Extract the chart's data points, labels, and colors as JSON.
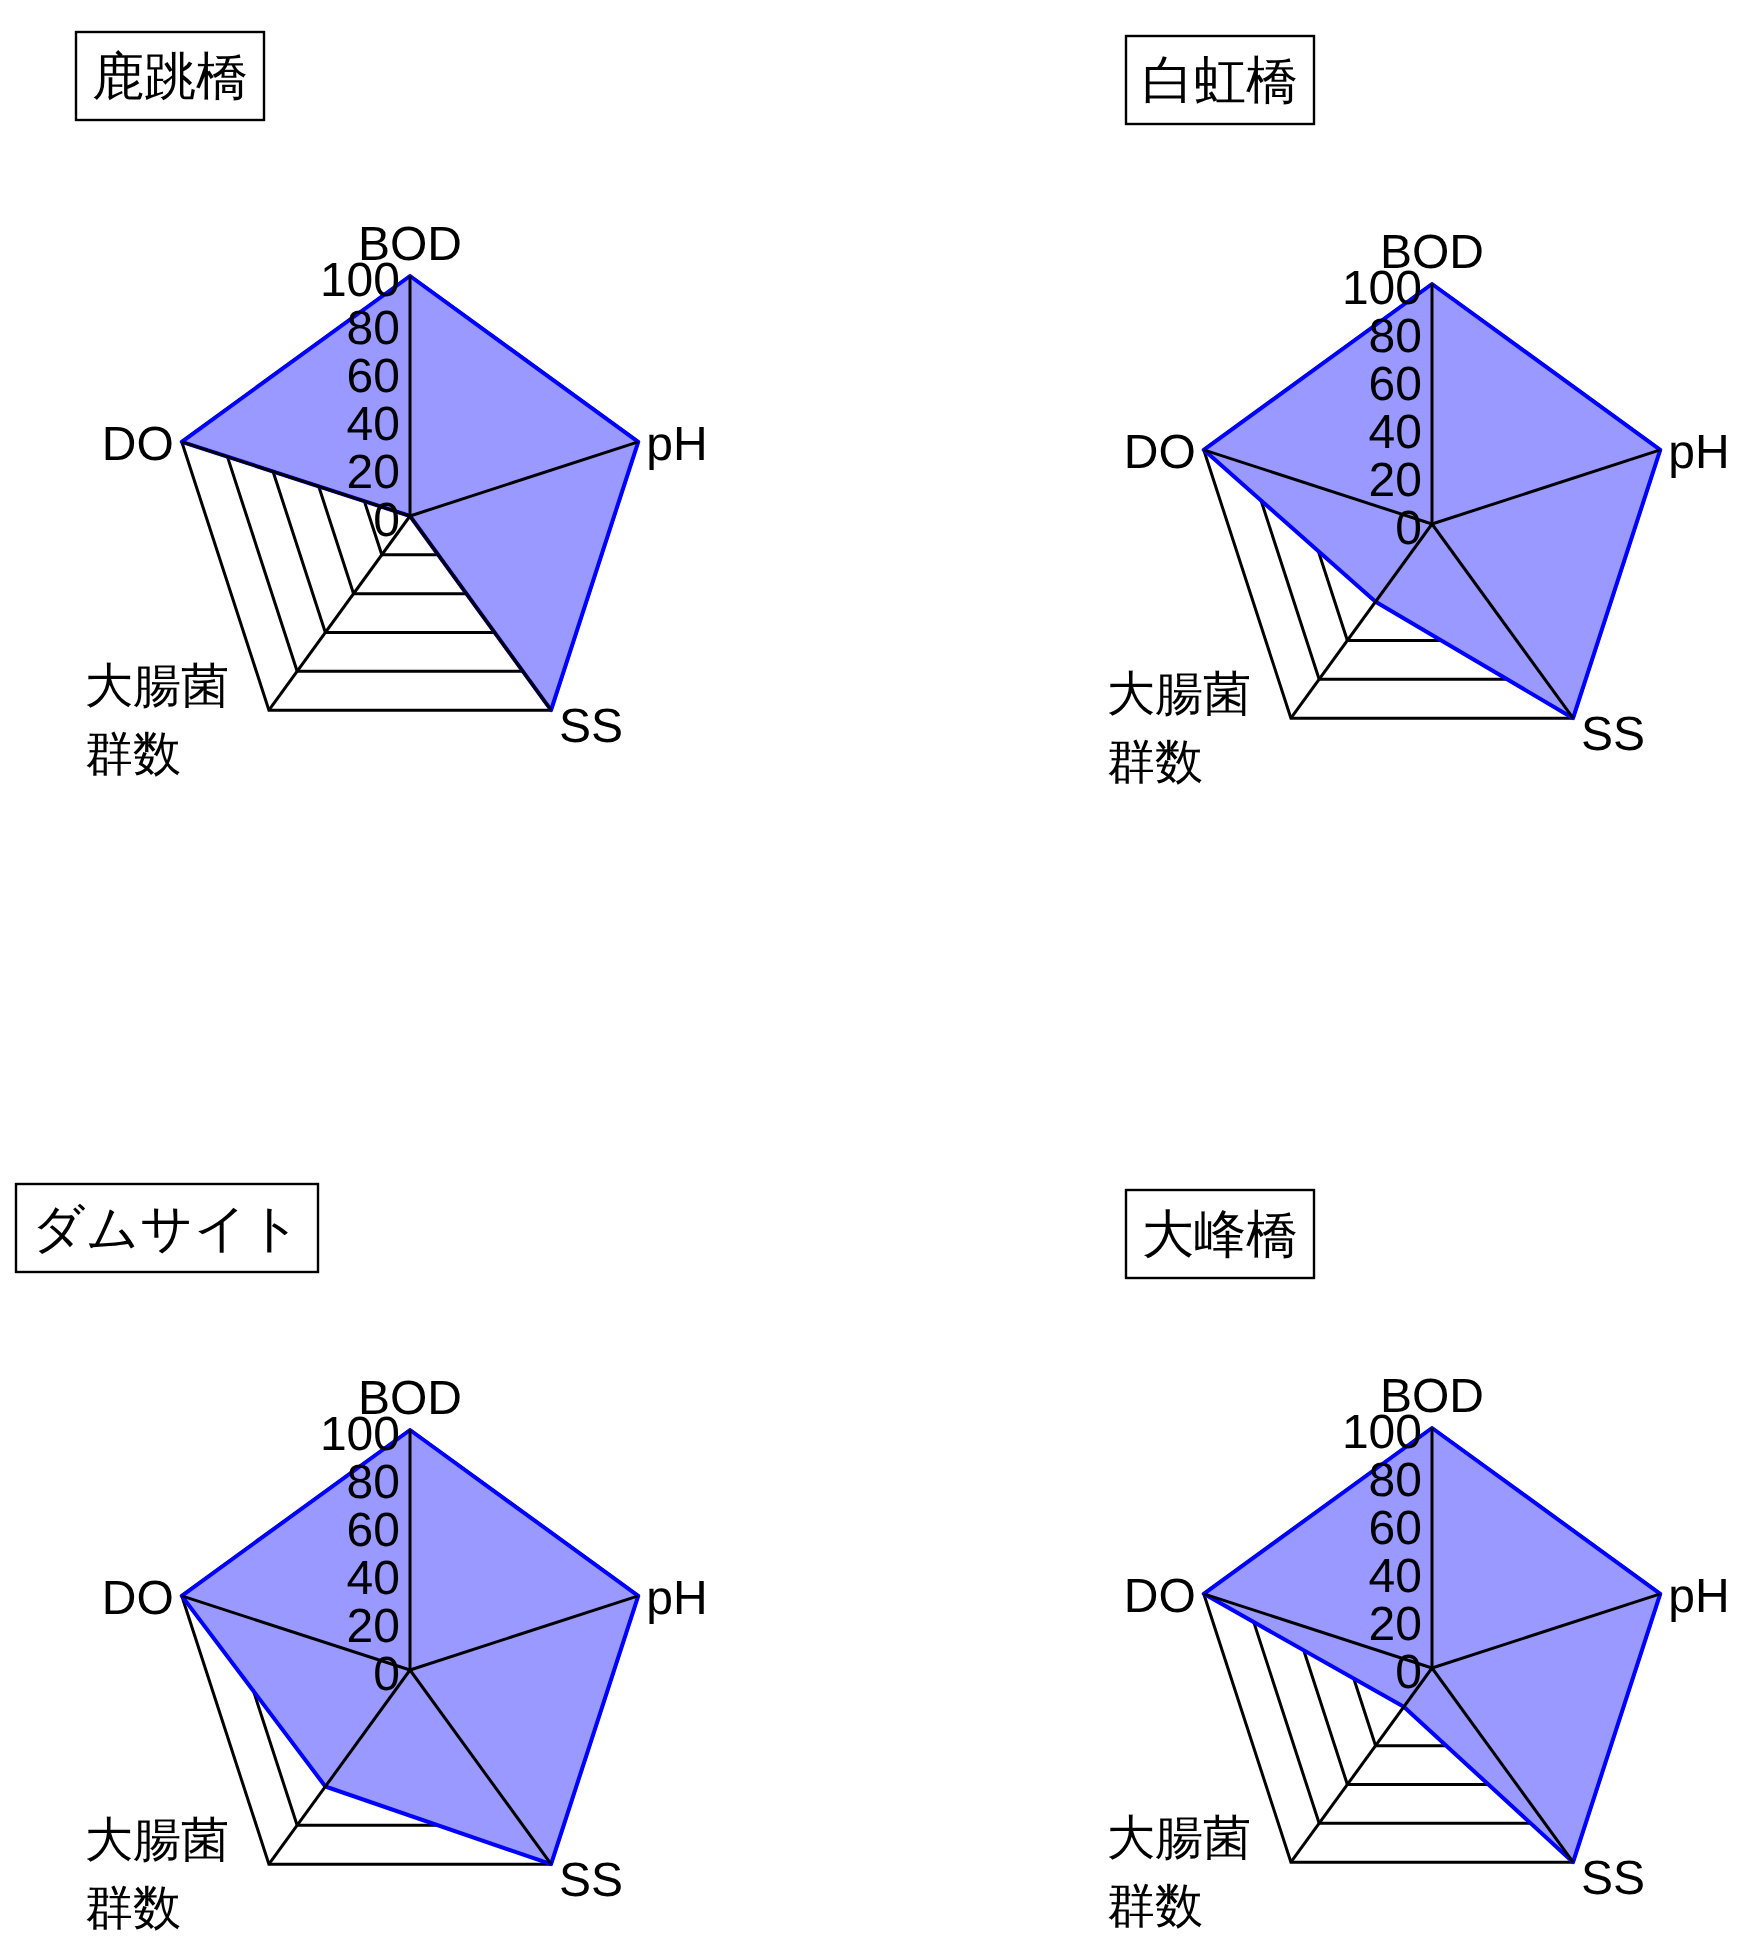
{
  "chart_data": [
    {
      "type": "radar",
      "title": "鹿跳橋",
      "categories": [
        "BOD",
        "pH",
        "SS",
        "大腸菌群数",
        "DO"
      ],
      "ylim": [
        0,
        100
      ],
      "yticks": [
        0,
        20,
        40,
        60,
        80,
        100
      ],
      "series": [
        {
          "color": "#0000ff",
          "values": [
            100,
            100,
            100,
            0,
            100
          ]
        }
      ]
    },
    {
      "type": "radar",
      "title": "白虹橋",
      "categories": [
        "BOD",
        "pH",
        "SS",
        "大腸菌群数",
        "DO"
      ],
      "ylim": [
        0,
        100
      ],
      "yticks": [
        0,
        20,
        40,
        60,
        80,
        100
      ],
      "series": [
        {
          "color": "#0000ff",
          "values": [
            100,
            100,
            100,
            40,
            100
          ]
        }
      ]
    },
    {
      "type": "radar",
      "title": "ダムサイト",
      "categories": [
        "BOD",
        "pH",
        "SS",
        "大腸菌群数",
        "DO"
      ],
      "ylim": [
        0,
        100
      ],
      "yticks": [
        0,
        20,
        40,
        60,
        80,
        100
      ],
      "series": [
        {
          "color": "#0000ff",
          "values": [
            100,
            100,
            100,
            60,
            100
          ]
        }
      ]
    },
    {
      "type": "radar",
      "title": "大峰橋",
      "categories": [
        "BOD",
        "pH",
        "SS",
        "大腸菌群数",
        "DO"
      ],
      "ylim": [
        0,
        100
      ],
      "yticks": [
        0,
        20,
        40,
        60,
        80,
        100
      ],
      "series": [
        {
          "color": "#0000ff",
          "values": [
            100,
            100,
            100,
            20,
            100
          ]
        }
      ]
    }
  ]
}
